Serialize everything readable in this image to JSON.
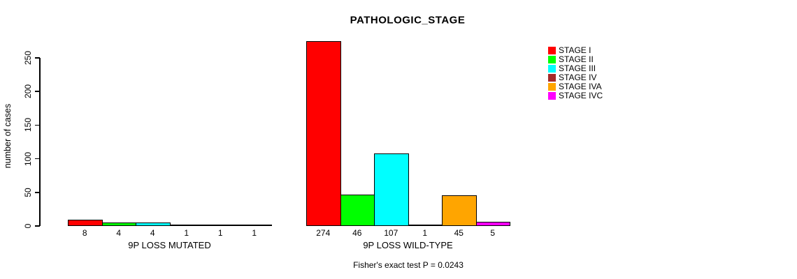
{
  "chart_data": {
    "type": "bar",
    "title": "PATHOLOGIC_STAGE",
    "ylabel": "number of cases",
    "xlabel": "",
    "groups": [
      "9P LOSS MUTATED",
      "9P LOSS WILD-TYPE"
    ],
    "series": [
      {
        "name": "STAGE I",
        "color": "#FF0000",
        "values": [
          8,
          274
        ]
      },
      {
        "name": "STAGE II",
        "color": "#00FF00",
        "values": [
          4,
          46
        ]
      },
      {
        "name": "STAGE III",
        "color": "#00FFFF",
        "values": [
          4,
          107
        ]
      },
      {
        "name": "STAGE IV",
        "color": "#A52A2A",
        "values": [
          1,
          1
        ]
      },
      {
        "name": "STAGE IVA",
        "color": "#FFA500",
        "values": [
          1,
          45
        ]
      },
      {
        "name": "STAGE IVC",
        "color": "#FF00FF",
        "values": [
          1,
          5
        ]
      }
    ],
    "yticks": [
      0,
      50,
      100,
      150,
      200,
      250
    ],
    "ylim": [
      0,
      274
    ],
    "grid": false,
    "bar_value_labels": true,
    "legend_position": "right",
    "annotation": "Fisher's exact test P = 0.0243"
  }
}
